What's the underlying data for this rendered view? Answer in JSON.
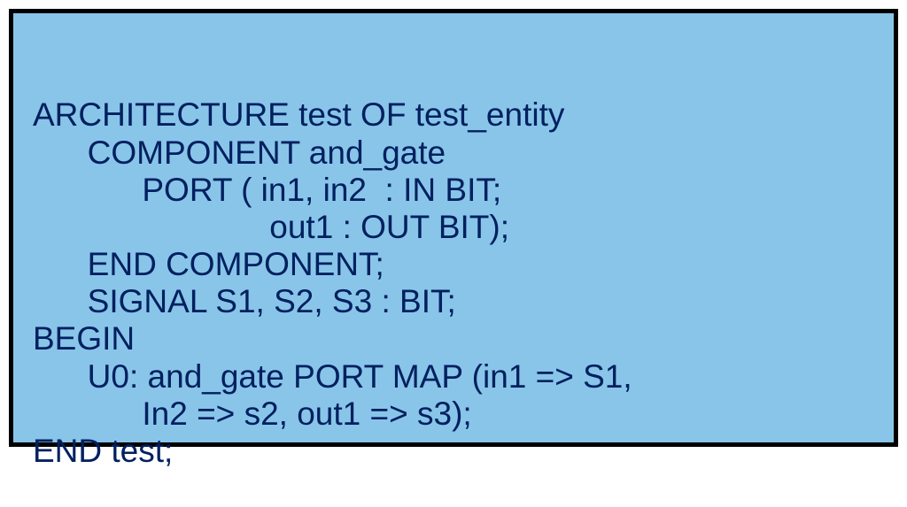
{
  "code_block": {
    "background_color": "#89c5e8",
    "border_color": "#000000",
    "border_width": 5,
    "font_family": "Arial, Helvetica, sans-serif",
    "font_size": 37,
    "text_color": "#002060",
    "lines": [
      "ARCHITECTURE test OF test_entity",
      "      COMPONENT and_gate",
      "            PORT ( in1, in2  : IN BIT;",
      "                          out1 : OUT BIT);",
      "      END COMPONENT;",
      "      SIGNAL S1, S2, S3 : BIT;",
      "BEGIN",
      "      U0: and_gate PORT MAP (in1 => S1,",
      "            In2 => s2, out1 => s3);",
      "END test;"
    ]
  }
}
